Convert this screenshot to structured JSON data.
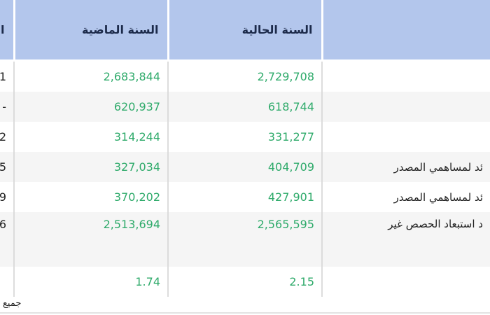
{
  "table": {
    "headers": {
      "label": "",
      "current_year": "السنة الحالية",
      "previous_year": "السنة الماضية",
      "extra": "ال"
    },
    "rows": [
      {
        "label": "",
        "current_year": "2,729,708",
        "previous_year": "2,683,844",
        "extra": "1"
      },
      {
        "label": "",
        "current_year": "618,744",
        "previous_year": "620,937",
        "extra": "-"
      },
      {
        "label": "",
        "current_year": "331,277",
        "previous_year": "314,244",
        "extra": "2"
      },
      {
        "label": "ئد لمساهمي المصدر",
        "current_year": "404,709",
        "previous_year": "327,034",
        "extra": "5"
      },
      {
        "label": "ئد لمساهمي المصدر",
        "current_year": "427,901",
        "previous_year": "370,202",
        "extra": "9"
      },
      {
        "label": "د استبعاد الحصص غير",
        "current_year": "2,565,595",
        "previous_year": "2,513,694",
        "extra": "6"
      },
      {
        "label": "",
        "current_year": "2.15",
        "previous_year": "1.74",
        "extra": ""
      }
    ]
  },
  "footer": {
    "note": "جميع"
  },
  "colors": {
    "header_bg": "#b3c6ec",
    "number_green": "#2eaa6a",
    "row_alt_bg": "#f5f5f5"
  }
}
